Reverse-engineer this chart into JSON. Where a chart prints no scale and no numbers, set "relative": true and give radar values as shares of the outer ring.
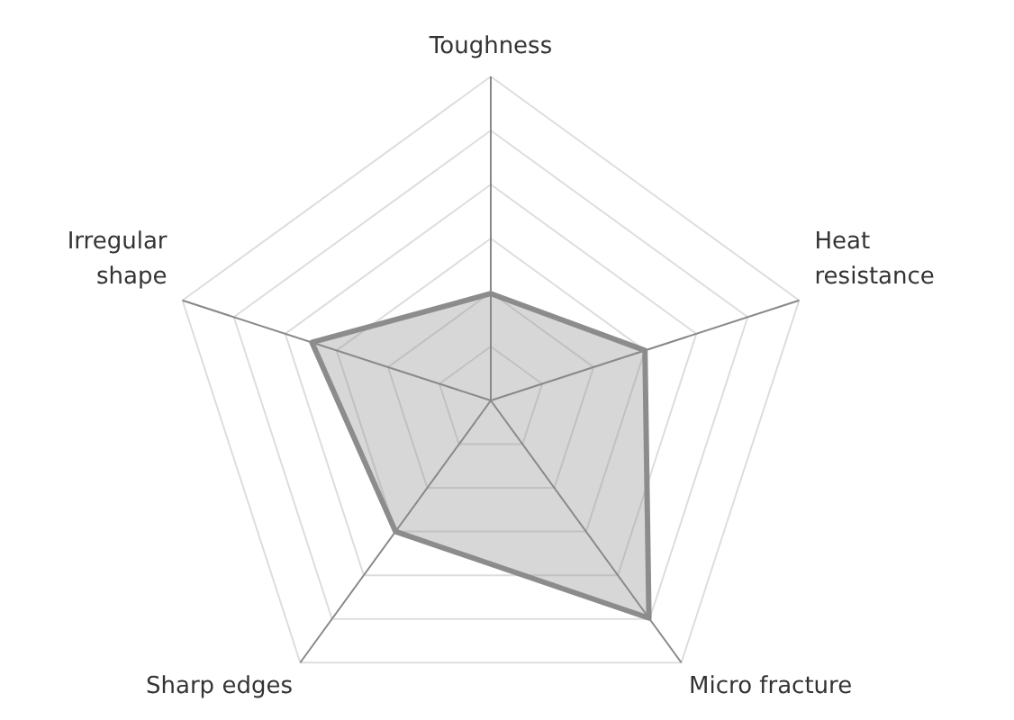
{
  "chart_data": {
    "type": "radar",
    "relative": true,
    "grid": true,
    "categories": [
      "Toughness",
      "Heat\nresistance",
      "Micro fracture",
      "Sharp edges",
      "Irregular\nshape"
    ],
    "series": [
      {
        "color": "#8c8c8c",
        "values": [
          0.33,
          0.5,
          0.83,
          0.5,
          0.58
        ]
      }
    ]
  }
}
